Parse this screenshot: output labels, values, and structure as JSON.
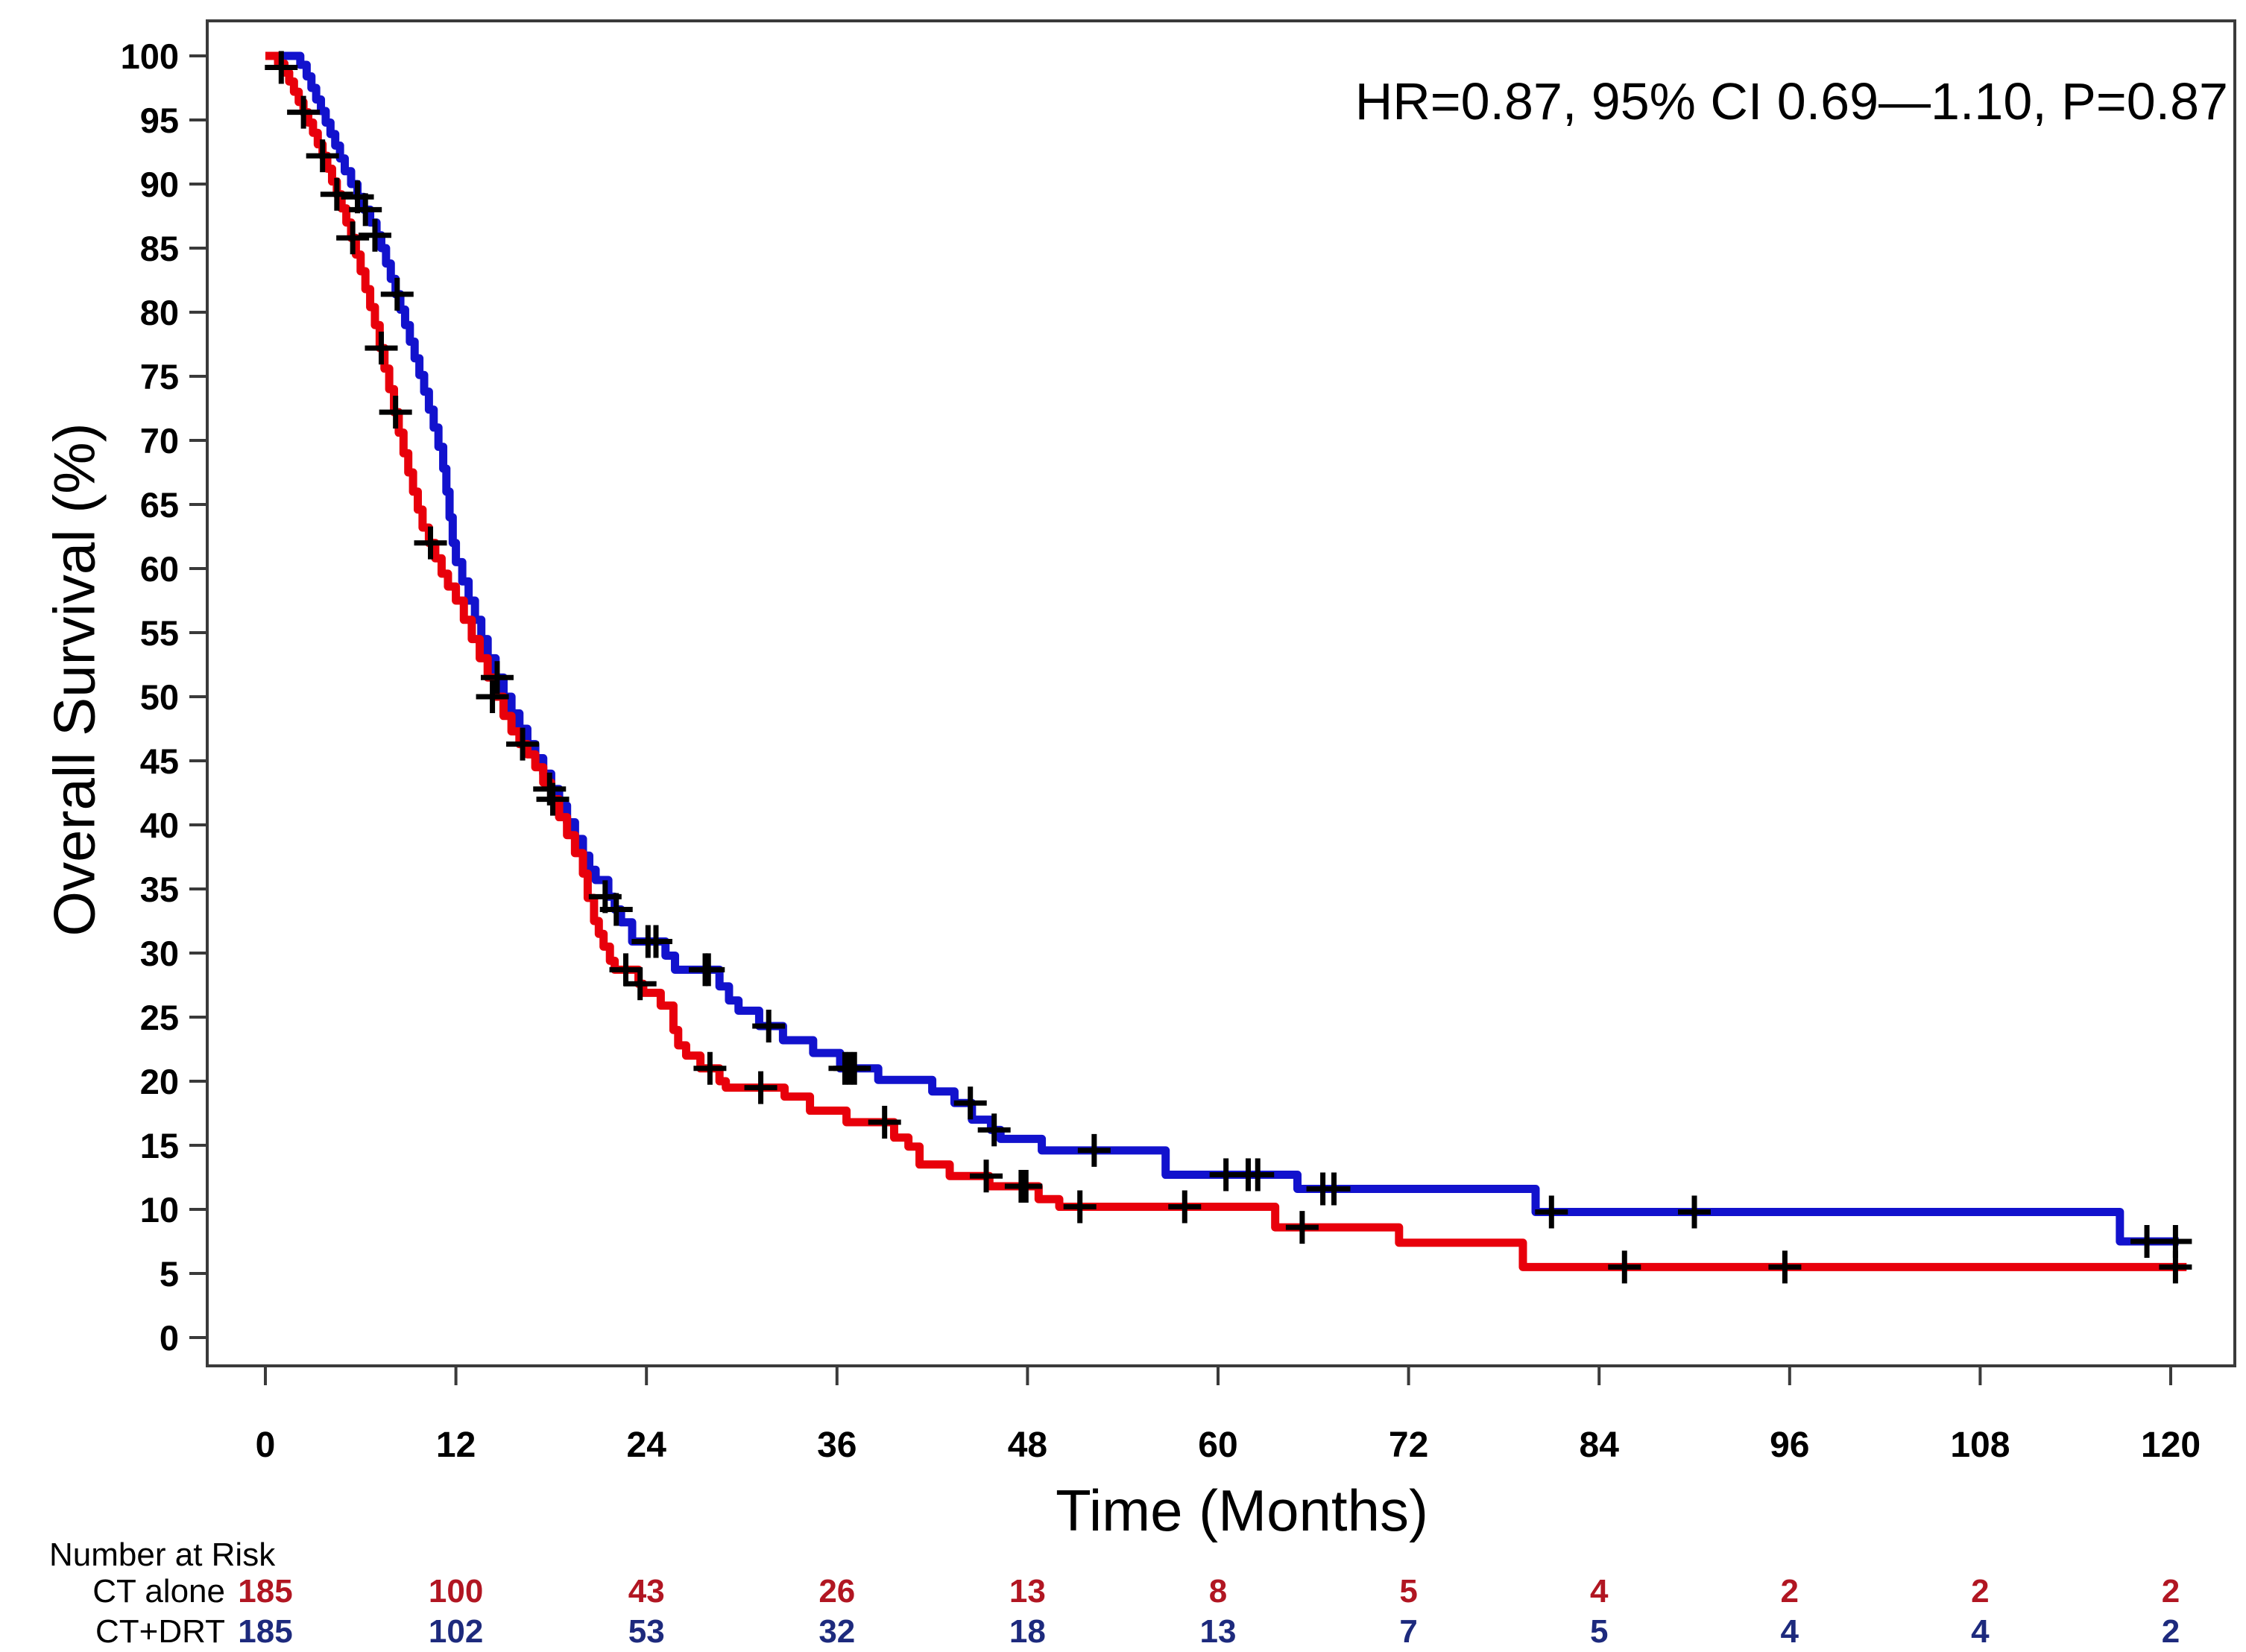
{
  "annotation": "HR=0.87, 95% CI 0.69—1.10, P=0.87",
  "chart_data": {
    "type": "line",
    "subtype": "kaplan-meier-step",
    "title": "",
    "xlabel": "Time (Months)",
    "ylabel": "Overall Survival (%)",
    "xlim": [
      0,
      120
    ],
    "ylim": [
      0,
      100
    ],
    "x_ticks": [
      0,
      12,
      24,
      36,
      48,
      60,
      72,
      84,
      96,
      108,
      120
    ],
    "y_ticks": [
      0,
      5,
      10,
      15,
      20,
      25,
      30,
      35,
      40,
      45,
      50,
      55,
      60,
      65,
      70,
      75,
      80,
      85,
      90,
      95,
      100
    ],
    "grid": false,
    "legend_position": "none",
    "colors": {
      "ct_alone": "#e8000b",
      "ct_drt": "#1212cd",
      "censor": "#000000",
      "axis": "#3a3a3a",
      "risk_red": "#b11622",
      "risk_blue": "#1d2a7d"
    },
    "series": [
      {
        "name": "CT+DRT",
        "color_key": "ct_drt",
        "steps": [
          [
            0,
            100
          ],
          [
            2.2,
            99.3
          ],
          [
            2.6,
            98.4
          ],
          [
            2.9,
            97.5
          ],
          [
            3.2,
            96.6
          ],
          [
            3.5,
            95.7
          ],
          [
            3.8,
            94.8
          ],
          [
            4.1,
            93.9
          ],
          [
            4.4,
            93
          ],
          [
            4.7,
            92
          ],
          [
            5,
            91
          ],
          [
            5.4,
            90
          ],
          [
            5.8,
            89
          ],
          [
            6.2,
            88
          ],
          [
            6.6,
            87
          ],
          [
            7,
            86
          ],
          [
            7.3,
            85
          ],
          [
            7.6,
            83.8
          ],
          [
            7.9,
            82.6
          ],
          [
            8.2,
            81.4
          ],
          [
            8.5,
            80.2
          ],
          [
            8.8,
            79
          ],
          [
            9.1,
            77.7
          ],
          [
            9.4,
            76.4
          ],
          [
            9.7,
            75.1
          ],
          [
            10,
            73.8
          ],
          [
            10.3,
            72.4
          ],
          [
            10.6,
            71
          ],
          [
            10.9,
            69.5
          ],
          [
            11.2,
            67.8
          ],
          [
            11.4,
            66
          ],
          [
            11.6,
            64
          ],
          [
            11.8,
            62
          ],
          [
            12,
            60.5
          ],
          [
            12.4,
            59
          ],
          [
            12.8,
            57.5
          ],
          [
            13.2,
            56
          ],
          [
            13.6,
            54.5
          ],
          [
            14,
            53
          ],
          [
            14.5,
            51.5
          ],
          [
            15,
            50
          ],
          [
            15.5,
            48.7
          ],
          [
            16,
            47.5
          ],
          [
            16.5,
            46.3
          ],
          [
            17,
            45.2
          ],
          [
            17.5,
            44
          ],
          [
            18,
            42.8
          ],
          [
            18.5,
            41.5
          ],
          [
            19,
            40.2
          ],
          [
            19.5,
            38.9
          ],
          [
            20,
            37.6
          ],
          [
            20.4,
            36.5
          ],
          [
            20.8,
            35.7
          ],
          [
            21.6,
            34.4
          ],
          [
            22,
            33.4
          ],
          [
            22.4,
            32.4
          ],
          [
            23.1,
            30.9
          ],
          [
            25.2,
            29.8
          ],
          [
            25.8,
            28.7
          ],
          [
            28.6,
            27.4
          ],
          [
            29.2,
            26.3
          ],
          [
            29.8,
            25.5
          ],
          [
            31.1,
            24.3
          ],
          [
            32.6,
            23.2
          ],
          [
            34.5,
            22.2
          ],
          [
            36.2,
            21
          ],
          [
            38.6,
            20.1
          ],
          [
            42,
            19.2
          ],
          [
            43.4,
            18.3
          ],
          [
            44.5,
            17
          ],
          [
            45.7,
            16.2
          ],
          [
            46.3,
            15.5
          ],
          [
            48.9,
            14.6
          ],
          [
            56.7,
            12.7
          ],
          [
            65,
            11.6
          ],
          [
            80,
            9.8
          ],
          [
            116.8,
            7.5
          ],
          [
            120.5,
            7.5
          ]
        ],
        "censors": [
          [
            5.8,
            89
          ],
          [
            6.3,
            88
          ],
          [
            6.9,
            86
          ],
          [
            8.3,
            81.4
          ],
          [
            14.6,
            51.5
          ],
          [
            17.9,
            42.8
          ],
          [
            21.4,
            34.4
          ],
          [
            22.1,
            33.4
          ],
          [
            24.1,
            30.9
          ],
          [
            24.6,
            30.9
          ],
          [
            27.7,
            28.7
          ],
          [
            27.9,
            28.7
          ],
          [
            31.7,
            24.3
          ],
          [
            36.5,
            21
          ],
          [
            36.8,
            21
          ],
          [
            37.1,
            21
          ],
          [
            44.4,
            18.3
          ],
          [
            45.9,
            16.2
          ],
          [
            52.2,
            14.6
          ],
          [
            60.5,
            12.7
          ],
          [
            61.9,
            12.7
          ],
          [
            62.5,
            12.7
          ],
          [
            66.6,
            11.6
          ],
          [
            67.3,
            11.6
          ],
          [
            81,
            9.8
          ],
          [
            90,
            9.8
          ],
          [
            118.5,
            7.5
          ],
          [
            120.3,
            7.5
          ]
        ]
      },
      {
        "name": "CT alone",
        "color_key": "ct_alone",
        "steps": [
          [
            0,
            100
          ],
          [
            0.8,
            99.4
          ],
          [
            1.2,
            98.7
          ],
          [
            1.5,
            98
          ],
          [
            1.8,
            97.2
          ],
          [
            2.1,
            96.4
          ],
          [
            2.4,
            95.6
          ],
          [
            2.7,
            94.8
          ],
          [
            3,
            94
          ],
          [
            3.3,
            93.1
          ],
          [
            3.6,
            92.2
          ],
          [
            3.9,
            91.2
          ],
          [
            4.2,
            90.2
          ],
          [
            4.5,
            89.2
          ],
          [
            4.8,
            88.1
          ],
          [
            5.1,
            87
          ],
          [
            5.4,
            85.8
          ],
          [
            5.7,
            84.5
          ],
          [
            6,
            83.2
          ],
          [
            6.3,
            81.8
          ],
          [
            6.6,
            80.4
          ],
          [
            6.9,
            79
          ],
          [
            7.2,
            77.2
          ],
          [
            7.5,
            75.6
          ],
          [
            7.8,
            74
          ],
          [
            8.1,
            72.2
          ],
          [
            8.4,
            70.6
          ],
          [
            8.7,
            69
          ],
          [
            9,
            67.5
          ],
          [
            9.3,
            66
          ],
          [
            9.6,
            64.6
          ],
          [
            9.9,
            63.2
          ],
          [
            10.3,
            62
          ],
          [
            10.7,
            60.8
          ],
          [
            11.1,
            59.6
          ],
          [
            11.5,
            58.6
          ],
          [
            12,
            57.5
          ],
          [
            12.5,
            56
          ],
          [
            13,
            54.5
          ],
          [
            13.5,
            53
          ],
          [
            14,
            51.5
          ],
          [
            14.5,
            50
          ],
          [
            15,
            48.5
          ],
          [
            15.5,
            47.3
          ],
          [
            16,
            46.3
          ],
          [
            16.5,
            45.5
          ],
          [
            17,
            44.5
          ],
          [
            17.5,
            43.3
          ],
          [
            18,
            42
          ],
          [
            18.5,
            40.6
          ],
          [
            19,
            39.2
          ],
          [
            19.5,
            37.8
          ],
          [
            20,
            36.2
          ],
          [
            20.3,
            34.3
          ],
          [
            20.7,
            32.5
          ],
          [
            21,
            31.5
          ],
          [
            21.3,
            30.5
          ],
          [
            21.7,
            29.4
          ],
          [
            22,
            28.7
          ],
          [
            23.5,
            27.6
          ],
          [
            23.8,
            26.9
          ],
          [
            24.9,
            25.9
          ],
          [
            25.7,
            24
          ],
          [
            26,
            22.8
          ],
          [
            26.5,
            22
          ],
          [
            27.4,
            21
          ],
          [
            28.6,
            20
          ],
          [
            29,
            19.5
          ],
          [
            32.7,
            18.8
          ],
          [
            34.3,
            17.7
          ],
          [
            36.6,
            16.8
          ],
          [
            39.6,
            15.6
          ],
          [
            40.5,
            14.9
          ],
          [
            41.2,
            13.5
          ],
          [
            43.1,
            12.6
          ],
          [
            45.6,
            11.8
          ],
          [
            48.7,
            10.8
          ],
          [
            50,
            10.2
          ],
          [
            63.6,
            8.6
          ],
          [
            71.4,
            7.4
          ],
          [
            79.2,
            5.5
          ],
          [
            121,
            5.5
          ]
        ],
        "censors": [
          [
            1,
            99.1
          ],
          [
            2.4,
            95.6
          ],
          [
            3.6,
            92.2
          ],
          [
            4.5,
            89.2
          ],
          [
            5.5,
            85.8
          ],
          [
            7.3,
            77.2
          ],
          [
            8.2,
            72.2
          ],
          [
            10.4,
            62
          ],
          [
            14.3,
            50
          ],
          [
            16.2,
            46.3
          ],
          [
            18.1,
            42
          ],
          [
            22.7,
            28.7
          ],
          [
            23.6,
            27.6
          ],
          [
            28,
            21
          ],
          [
            31.2,
            19.5
          ],
          [
            39,
            16.8
          ],
          [
            45.4,
            12.6
          ],
          [
            47.6,
            11.8
          ],
          [
            47.9,
            11.8
          ],
          [
            51.3,
            10.2
          ],
          [
            57.9,
            10.2
          ],
          [
            65.3,
            8.6
          ],
          [
            85.6,
            5.5
          ],
          [
            95.7,
            5.5
          ],
          [
            120.3,
            5.5
          ]
        ]
      }
    ],
    "risk_table": {
      "title": "Number at Risk",
      "months": [
        0,
        12,
        24,
        36,
        48,
        60,
        72,
        84,
        96,
        108,
        120
      ],
      "rows": [
        {
          "label": "CT alone",
          "color_key": "risk_red",
          "values": [
            185,
            100,
            43,
            26,
            13,
            8,
            5,
            4,
            2,
            2,
            2
          ]
        },
        {
          "label": "CT+DRT",
          "color_key": "risk_blue",
          "values": [
            185,
            102,
            53,
            32,
            18,
            13,
            7,
            5,
            4,
            4,
            2
          ]
        }
      ]
    }
  }
}
